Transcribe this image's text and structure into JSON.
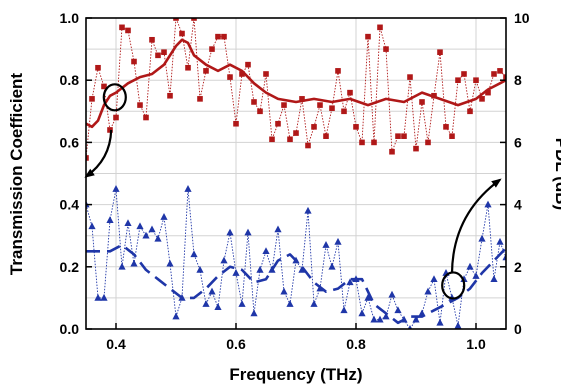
{
  "chart_data": {
    "type": "line",
    "x_axis": {
      "label": "Frequency (THz)",
      "range": [
        0.35,
        1.05
      ],
      "ticks": [
        0.4,
        0.6,
        0.8,
        1.0
      ],
      "tick_labels": [
        "0.4",
        "0.6",
        "0.8",
        "1.0"
      ]
    },
    "y_left": {
      "label": "Transmission Coefficient",
      "range": [
        0,
        1
      ],
      "ticks": [
        0,
        0.2,
        0.4,
        0.6,
        0.8,
        1.0
      ],
      "tick_labels": [
        "0.0",
        "0.2",
        "0.4",
        "0.6",
        "0.8",
        "1.0"
      ]
    },
    "y_right": {
      "label": "PDL (dB)",
      "range": [
        0,
        10
      ],
      "ticks": [
        0,
        2,
        4,
        6,
        8,
        10
      ],
      "tick_labels": [
        "0",
        "2",
        "4",
        "6",
        "8",
        "10"
      ]
    },
    "grid": true,
    "series": [
      {
        "axis": "left",
        "style": "markers-dotted",
        "marker": "square",
        "color": "#b01818",
        "x": [
          0.35,
          0.36,
          0.37,
          0.38,
          0.39,
          0.4,
          0.41,
          0.42,
          0.43,
          0.44,
          0.45,
          0.46,
          0.47,
          0.48,
          0.49,
          0.5,
          0.51,
          0.52,
          0.53,
          0.54,
          0.55,
          0.56,
          0.57,
          0.58,
          0.59,
          0.6,
          0.61,
          0.62,
          0.63,
          0.64,
          0.65,
          0.66,
          0.67,
          0.68,
          0.69,
          0.7,
          0.71,
          0.72,
          0.73,
          0.74,
          0.75,
          0.76,
          0.77,
          0.78,
          0.79,
          0.8,
          0.81,
          0.82,
          0.83,
          0.84,
          0.85,
          0.86,
          0.87,
          0.88,
          0.89,
          0.9,
          0.91,
          0.92,
          0.93,
          0.94,
          0.95,
          0.96,
          0.97,
          0.98,
          0.99,
          1.0,
          1.01,
          1.02,
          1.03,
          1.04,
          1.05
        ],
        "y": [
          0.55,
          0.74,
          0.84,
          0.78,
          0.64,
          0.68,
          0.97,
          0.96,
          0.86,
          0.72,
          0.68,
          0.93,
          0.88,
          0.89,
          0.75,
          1.0,
          0.95,
          0.84,
          1.0,
          0.74,
          0.83,
          0.9,
          0.94,
          0.94,
          0.81,
          0.66,
          0.82,
          0.85,
          0.73,
          0.7,
          0.82,
          0.61,
          0.66,
          0.72,
          0.61,
          0.63,
          0.74,
          0.59,
          0.65,
          0.72,
          0.62,
          0.71,
          0.83,
          0.7,
          0.76,
          0.65,
          0.6,
          0.94,
          0.6,
          0.97,
          0.9,
          0.57,
          0.62,
          0.62,
          0.81,
          0.58,
          0.73,
          0.6,
          0.75,
          0.89,
          0.65,
          0.62,
          0.8,
          0.82,
          0.7,
          0.8,
          0.74,
          0.76,
          0.82,
          0.83,
          0.81
        ]
      },
      {
        "axis": "left",
        "style": "solid",
        "color": "#b01818",
        "x": [
          0.35,
          0.36,
          0.37,
          0.38,
          0.39,
          0.4,
          0.42,
          0.44,
          0.46,
          0.48,
          0.5,
          0.51,
          0.52,
          0.53,
          0.55,
          0.57,
          0.59,
          0.61,
          0.63,
          0.65,
          0.67,
          0.7,
          0.73,
          0.76,
          0.79,
          0.82,
          0.85,
          0.88,
          0.91,
          0.94,
          0.97,
          1.0,
          1.02,
          1.04,
          1.05
        ],
        "y": [
          0.66,
          0.65,
          0.67,
          0.72,
          0.75,
          0.76,
          0.79,
          0.81,
          0.82,
          0.85,
          0.91,
          0.93,
          0.92,
          0.88,
          0.85,
          0.83,
          0.85,
          0.83,
          0.79,
          0.76,
          0.74,
          0.73,
          0.74,
          0.73,
          0.74,
          0.72,
          0.74,
          0.73,
          0.76,
          0.74,
          0.72,
          0.74,
          0.77,
          0.79,
          0.8
        ]
      },
      {
        "axis": "right",
        "style": "markers-dotted",
        "marker": "triangle",
        "color": "#1f36a8",
        "x": [
          0.35,
          0.36,
          0.37,
          0.38,
          0.39,
          0.4,
          0.41,
          0.42,
          0.43,
          0.44,
          0.45,
          0.46,
          0.47,
          0.48,
          0.49,
          0.5,
          0.51,
          0.52,
          0.53,
          0.54,
          0.55,
          0.56,
          0.57,
          0.58,
          0.59,
          0.6,
          0.61,
          0.62,
          0.63,
          0.64,
          0.65,
          0.66,
          0.67,
          0.68,
          0.69,
          0.7,
          0.71,
          0.72,
          0.73,
          0.74,
          0.75,
          0.76,
          0.77,
          0.78,
          0.79,
          0.8,
          0.81,
          0.82,
          0.83,
          0.84,
          0.85,
          0.86,
          0.87,
          0.88,
          0.89,
          0.9,
          0.91,
          0.92,
          0.93,
          0.94,
          0.95,
          0.96,
          0.97,
          0.98,
          0.99,
          1.0,
          1.01,
          1.02,
          1.03,
          1.04,
          1.05
        ],
        "y": [
          4.0,
          3.3,
          1.0,
          1.0,
          3.5,
          4.5,
          2.0,
          3.4,
          2.1,
          3.3,
          3.0,
          3.2,
          2.9,
          3.6,
          2.1,
          0.4,
          1.0,
          4.5,
          2.4,
          1.9,
          0.8,
          1.2,
          0.7,
          2.2,
          3.1,
          1.8,
          0.8,
          3.1,
          0.5,
          1.9,
          2.5,
          1.9,
          3.2,
          1.2,
          0.8,
          2.2,
          1.9,
          3.8,
          0.8,
          1.3,
          2.7,
          2.0,
          2.8,
          0.6,
          1.5,
          1.6,
          0.5,
          1.0,
          0.3,
          0.3,
          0.4,
          1.1,
          0.6,
          0.3,
          0.0,
          0.3,
          0.5,
          1.2,
          1.6,
          0.2,
          1.8,
          1.0,
          0.1,
          1.6,
          2.0,
          1.7,
          2.9,
          4.0,
          1.6,
          2.8,
          2.3
        ]
      },
      {
        "axis": "right",
        "style": "dashed",
        "color": "#1f36a8",
        "x": [
          0.35,
          0.37,
          0.39,
          0.41,
          0.43,
          0.45,
          0.47,
          0.49,
          0.51,
          0.53,
          0.55,
          0.57,
          0.59,
          0.61,
          0.63,
          0.65,
          0.67,
          0.69,
          0.71,
          0.73,
          0.75,
          0.77,
          0.79,
          0.81,
          0.83,
          0.85,
          0.87,
          0.89,
          0.91,
          0.93,
          0.95,
          0.97,
          0.99,
          1.01,
          1.03,
          1.05
        ],
        "y": [
          2.5,
          2.5,
          2.5,
          2.7,
          2.4,
          1.9,
          1.6,
          1.3,
          1.0,
          1.0,
          1.3,
          1.7,
          2.0,
          1.9,
          1.5,
          1.6,
          2.2,
          2.4,
          2.0,
          1.5,
          1.2,
          1.3,
          1.6,
          1.6,
          0.8,
          0.5,
          0.2,
          0.4,
          0.4,
          0.6,
          0.8,
          1.0,
          1.3,
          1.8,
          2.2,
          2.6
        ]
      }
    ],
    "annotations": [
      {
        "kind": "ellipse",
        "x": 0.398,
        "y_left": 0.745
      },
      {
        "kind": "arrow",
        "from": [
          0.392,
          0.64
        ],
        "to": [
          0.35,
          0.49
        ]
      },
      {
        "kind": "ellipse",
        "x": 0.962,
        "y_left": 0.14
      },
      {
        "kind": "arrow",
        "from": [
          0.96,
          0.18
        ],
        "to": [
          1.04,
          0.48
        ]
      }
    ],
    "colors": {
      "red": "#b01818",
      "blue": "#1f36a8",
      "grid": "#d3d3d3"
    }
  }
}
